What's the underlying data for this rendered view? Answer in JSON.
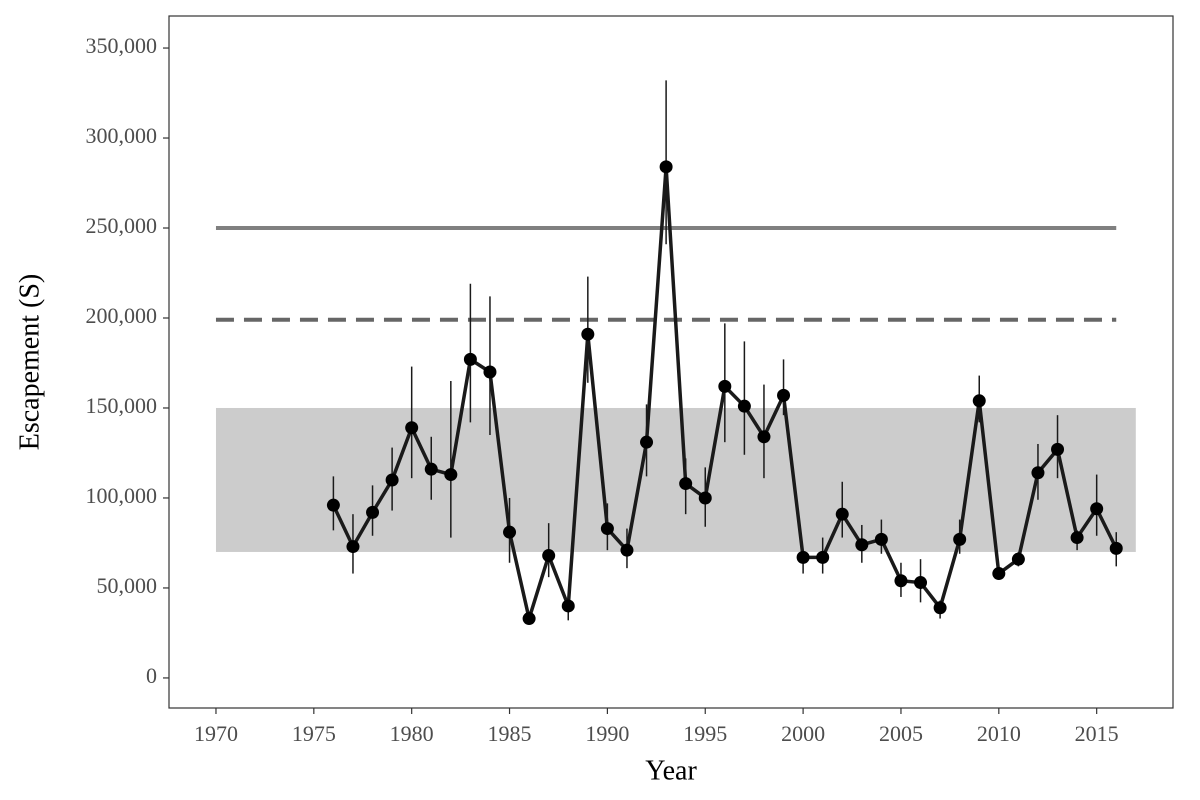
{
  "chart_data": {
    "type": "line",
    "x_label": "Year",
    "y_label": "Escapement (S)",
    "x": [
      1976,
      1977,
      1978,
      1979,
      1980,
      1981,
      1982,
      1983,
      1984,
      1985,
      1986,
      1987,
      1988,
      1989,
      1990,
      1991,
      1992,
      1993,
      1994,
      1995,
      1996,
      1997,
      1998,
      1999,
      2000,
      2001,
      2002,
      2003,
      2004,
      2005,
      2006,
      2007,
      2008,
      2009,
      2010,
      2011,
      2012,
      2013,
      2014,
      2015,
      2016
    ],
    "values": [
      96000,
      73000,
      92000,
      110000,
      139000,
      116000,
      113000,
      177000,
      170000,
      81000,
      33000,
      68000,
      40000,
      191000,
      83000,
      71000,
      131000,
      284000,
      108000,
      100000,
      162000,
      151000,
      134000,
      157000,
      67000,
      67000,
      91000,
      74000,
      77000,
      54000,
      53000,
      39000,
      77000,
      154000,
      58000,
      66000,
      114000,
      127000,
      78000,
      94000,
      72000
    ],
    "lower": [
      82000,
      58000,
      79000,
      93000,
      111000,
      99000,
      78000,
      142000,
      135000,
      64000,
      31000,
      56000,
      32000,
      164000,
      71000,
      61000,
      112000,
      241000,
      91000,
      84000,
      131000,
      124000,
      111000,
      146000,
      58000,
      58000,
      78000,
      64000,
      69000,
      45000,
      42000,
      33000,
      69000,
      142000,
      55000,
      62000,
      99000,
      111000,
      71000,
      79000,
      62000
    ],
    "upper": [
      112000,
      91000,
      107000,
      128000,
      173000,
      134000,
      165000,
      219000,
      212000,
      100000,
      36000,
      86000,
      44000,
      223000,
      97000,
      83000,
      152000,
      332000,
      122000,
      117000,
      197000,
      187000,
      163000,
      177000,
      71000,
      78000,
      109000,
      85000,
      88000,
      64000,
      66000,
      43000,
      88000,
      168000,
      61000,
      70000,
      130000,
      146000,
      82000,
      113000,
      81000
    ],
    "color": "#1a1a1a",
    "band": {
      "lower": 70000,
      "upper": 150000,
      "x": [
        1970,
        2017
      ],
      "color": "#cccccc"
    },
    "hlines": [
      {
        "value": 250000,
        "x": [
          1970,
          2016
        ],
        "style": "solid",
        "color": "#808080"
      },
      {
        "value": 199000,
        "x": [
          1970,
          2016
        ],
        "style": "dashed",
        "color": "#666666"
      }
    ],
    "xlim": [
      1967.6,
      2018.9
    ],
    "ylim": [
      -16700,
      367800
    ],
    "xticks": [
      1970,
      1975,
      1980,
      1985,
      1990,
      1995,
      2000,
      2005,
      2010,
      2015
    ],
    "yticks": [
      0,
      {
        "value": 50000,
        "label": "50,000"
      },
      {
        "value": 100000,
        "label": "100,000"
      },
      {
        "value": 150000,
        "label": "150,000"
      },
      {
        "value": 200000,
        "label": "200,000"
      },
      {
        "value": 250000,
        "label": "250,000"
      },
      {
        "value": 300000,
        "label": "300,000"
      },
      {
        "value": 350000,
        "label": "350,000"
      }
    ]
  }
}
